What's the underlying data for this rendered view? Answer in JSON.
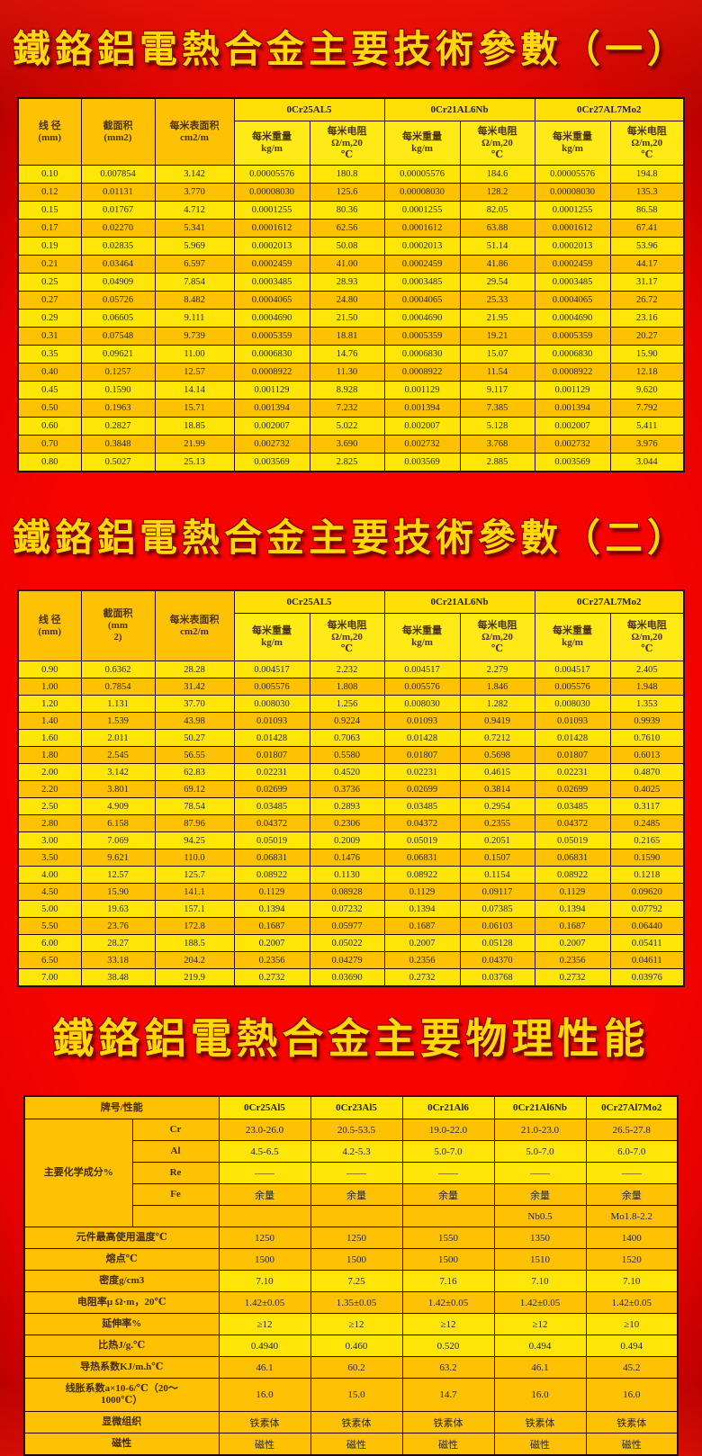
{
  "titles": {
    "t1": "鐵鉻鋁電熱合金主要技術參數（一）",
    "t2": "鐵鉻鋁電熱合金主要技術參數（二）",
    "t3": "鐵鉻鋁電熱合金主要物理性能"
  },
  "colors": {
    "background_red": "#ef0300",
    "vignette_maroon": "#5c0000",
    "cell_yellow": "#ffe608",
    "cell_orange": "#ffc103",
    "title_gold": "#ffd908"
  },
  "table1": {
    "col_headers": [
      "线 径\n(mm)",
      "截面积\n(mm2)",
      "每米表面积\ncm2/m"
    ],
    "alloys": [
      "0Cr25AL5",
      "0Cr21AL6Nb",
      "0Cr27AL7Mo2"
    ],
    "sub_headers": {
      "weight": "每米重量\nkg/m",
      "resistance": "每米电阻\nΩ/m,20\n℃"
    },
    "rows": [
      [
        "0.10",
        "0.007854",
        "3.142",
        "0.00005576",
        "180.8",
        "0.00005576",
        "184.6",
        "0.00005576",
        "194.8"
      ],
      [
        "0.12",
        "0.01131",
        "3.770",
        "0.00008030",
        "125.6",
        "0.00008030",
        "128.2",
        "0.00008030",
        "135.3"
      ],
      [
        "0.15",
        "0.01767",
        "4.712",
        "0.0001255",
        "80.36",
        "0.0001255",
        "82.05",
        "0.0001255",
        "86.58"
      ],
      [
        "0.17",
        "0.02270",
        "5.341",
        "0.0001612",
        "62.56",
        "0.0001612",
        "63.88",
        "0.0001612",
        "67.41"
      ],
      [
        "0.19",
        "0.02835",
        "5.969",
        "0.0002013",
        "50.08",
        "0.0002013",
        "51.14",
        "0.0002013",
        "53.96"
      ],
      [
        "0.21",
        "0.03464",
        "6.597",
        "0.0002459",
        "41.00",
        "0.0002459",
        "41.86",
        "0.0002459",
        "44.17"
      ],
      [
        "0.25",
        "0.04909",
        "7.854",
        "0.0003485",
        "28.93",
        "0.0003485",
        "29.54",
        "0.0003485",
        "31.17"
      ],
      [
        "0.27",
        "0.05726",
        "8.482",
        "0.0004065",
        "24.80",
        "0.0004065",
        "25.33",
        "0.0004065",
        "26.72"
      ],
      [
        "0.29",
        "0.06605",
        "9.111",
        "0.0004690",
        "21.50",
        "0.0004690",
        "21.95",
        "0.0004690",
        "23.16"
      ],
      [
        "0.31",
        "0.07548",
        "9.739",
        "0.0005359",
        "18.81",
        "0.0005359",
        "19.21",
        "0.0005359",
        "20.27"
      ],
      [
        "0.35",
        "0.09621",
        "11.00",
        "0.0006830",
        "14.76",
        "0.0006830",
        "15.07",
        "0.0006830",
        "15.90"
      ],
      [
        "0.40",
        "0.1257",
        "12.57",
        "0.0008922",
        "11.30",
        "0.0008922",
        "11.54",
        "0.0008922",
        "12.18"
      ],
      [
        "0.45",
        "0.1590",
        "14.14",
        "0.001129",
        "8.928",
        "0.001129",
        "9.117",
        "0.001129",
        "9.620"
      ],
      [
        "0.50",
        "0.1963",
        "15.71",
        "0.001394",
        "7.232",
        "0.001394",
        "7.385",
        "0.001394",
        "7.792"
      ],
      [
        "0.60",
        "0.2827",
        "18.85",
        "0.002007",
        "5.022",
        "0.002007",
        "5.128",
        "0.002007",
        "5.411"
      ],
      [
        "0.70",
        "0.3848",
        "21.99",
        "0.002732",
        "3.690",
        "0.002732",
        "3.768",
        "0.002732",
        "3.976"
      ],
      [
        "0.80",
        "0.5027",
        "25.13",
        "0.003569",
        "2.825",
        "0.003569",
        "2.885",
        "0.003569",
        "3.044"
      ]
    ]
  },
  "table2": {
    "col_headers": [
      "线 径\n(mm)",
      "截面积\n(mm\n2)",
      "每米表面积\ncm2/m"
    ],
    "alloys": [
      "0Cr25AL5",
      "0Cr21AL6Nb",
      "0Cr27AL7Mo2"
    ],
    "sub_headers": {
      "weight": "每米重量\nkg/m",
      "resistance": "每米电阻\nΩ/m,20\n℃"
    },
    "rows": [
      [
        "0.90",
        "0.6362",
        "28.28",
        "0.004517",
        "2.232",
        "0.004517",
        "2.279",
        "0.004517",
        "2.405"
      ],
      [
        "1.00",
        "0.7854",
        "31.42",
        "0.005576",
        "1.808",
        "0.005576",
        "1.846",
        "0.005576",
        "1.948"
      ],
      [
        "1.20",
        "1.131",
        "37.70",
        "0.008030",
        "1.256",
        "0.008030",
        "1.282",
        "0.008030",
        "1.353"
      ],
      [
        "1.40",
        "1.539",
        "43.98",
        "0.01093",
        "0.9224",
        "0.01093",
        "0.9419",
        "0.01093",
        "0.9939"
      ],
      [
        "1.60",
        "2.011",
        "50.27",
        "0.01428",
        "0.7063",
        "0.01428",
        "0.7212",
        "0.01428",
        "0.7610"
      ],
      [
        "1.80",
        "2.545",
        "56.55",
        "0.01807",
        "0.5580",
        "0.01807",
        "0.5698",
        "0.01807",
        "0.6013"
      ],
      [
        "2.00",
        "3.142",
        "62.83",
        "0.02231",
        "0.4520",
        "0.02231",
        "0.4615",
        "0.02231",
        "0.4870"
      ],
      [
        "2.20",
        "3.801",
        "69.12",
        "0.02699",
        "0.3736",
        "0.02699",
        "0.3814",
        "0.02699",
        "0.4025"
      ],
      [
        "2.50",
        "4.909",
        "78.54",
        "0.03485",
        "0.2893",
        "0.03485",
        "0.2954",
        "0.03485",
        "0.3117"
      ],
      [
        "2.80",
        "6.158",
        "87.96",
        "0.04372",
        "0.2306",
        "0.04372",
        "0.2355",
        "0.04372",
        "0.2485"
      ],
      [
        "3.00",
        "7.069",
        "94.25",
        "0.05019",
        "0.2009",
        "0.05019",
        "0.2051",
        "0.05019",
        "0.2165"
      ],
      [
        "3.50",
        "9.621",
        "110.0",
        "0.06831",
        "0.1476",
        "0.06831",
        "0.1507",
        "0.06831",
        "0.1590"
      ],
      [
        "4.00",
        "12.57",
        "125.7",
        "0.08922",
        "0.1130",
        "0.08922",
        "0.1154",
        "0.08922",
        "0.1218"
      ],
      [
        "4.50",
        "15.90",
        "141.1",
        "0.1129",
        "0.08928",
        "0.1129",
        "0.09117",
        "0.1129",
        "0.09620"
      ],
      [
        "5.00",
        "19.63",
        "157.1",
        "0.1394",
        "0.07232",
        "0.1394",
        "0.07385",
        "0.1394",
        "0.07792"
      ],
      [
        "5.50",
        "23.76",
        "172.8",
        "0.1687",
        "0.05977",
        "0.1687",
        "0.06103",
        "0.1687",
        "0.06440"
      ],
      [
        "6.00",
        "28.27",
        "188.5",
        "0.2007",
        "0.05022",
        "0.2007",
        "0.05128",
        "0.2007",
        "0.05411"
      ],
      [
        "6.50",
        "33.18",
        "204.2",
        "0.2356",
        "0.04279",
        "0.2356",
        "0.04370",
        "0.2356",
        "0.04611"
      ],
      [
        "7.00",
        "38.48",
        "219.9",
        "0.2732",
        "0.03690",
        "0.2732",
        "0.03768",
        "0.2732",
        "0.03976"
      ]
    ]
  },
  "table3": {
    "corner_header": "牌号/性能",
    "alloys": [
      "0Cr25Al5",
      "0Cr23Al5",
      "0Cr21Al6",
      "0Cr21Al6Nb",
      "0Cr27Al7Mo2"
    ],
    "chem_label": "主要化学成分%",
    "chem_rows": [
      {
        "element": "Cr",
        "values": [
          "23.0-26.0",
          "20.5-53.5",
          "19.0-22.0",
          "21.0-23.0",
          "26.5-27.8"
        ]
      },
      {
        "element": "Al",
        "values": [
          "4.5-6.5",
          "4.2-5.3",
          "5.0-7.0",
          "5.0-7.0",
          "6.0-7.0"
        ]
      },
      {
        "element": "Re",
        "values": [
          "——",
          "——",
          "——",
          "——",
          "——"
        ]
      },
      {
        "element": "Fe",
        "values": [
          "余量",
          "余量",
          "余量",
          "余量",
          "余量"
        ]
      },
      {
        "element": "",
        "values": [
          "",
          "",
          "",
          "Nb0.5",
          "Mo1.8-2.2"
        ]
      }
    ],
    "prop_rows": [
      {
        "label": "元件最高使用温度℃",
        "values": [
          "1250",
          "1250",
          "1550",
          "1350",
          "1400"
        ]
      },
      {
        "label": "熔点℃",
        "values": [
          "1500",
          "1500",
          "1500",
          "1510",
          "1520"
        ]
      },
      {
        "label": "密度g/cm3",
        "values": [
          "7.10",
          "7.25",
          "7.16",
          "7.10",
          "7.10"
        ]
      },
      {
        "label": "电阻率μ Ω·m，20℃",
        "values": [
          "1.42±0.05",
          "1.35±0.05",
          "1.42±0.05",
          "1.42±0.05",
          "1.42±0.05"
        ]
      },
      {
        "label": "延伸率%",
        "values": [
          "≥12",
          "≥12",
          "≥12",
          "≥12",
          "≥10"
        ]
      },
      {
        "label": "比热J/g.℃",
        "values": [
          "0.4940",
          "0.460",
          "0.520",
          "0.494",
          "0.494"
        ]
      },
      {
        "label": "导热系数KJ/m.h℃",
        "values": [
          "46.1",
          "60.2",
          "63.2",
          "46.1",
          "45.2"
        ]
      },
      {
        "label": "线胀系数a×10-6/℃（20～\n1000℃）",
        "values": [
          "16.0",
          "15.0",
          "14.7",
          "16.0",
          "16.0"
        ]
      },
      {
        "label": "显微组织",
        "values": [
          "铁素体",
          "铁素体",
          "铁素体",
          "铁素体",
          "铁素体"
        ]
      },
      {
        "label": "磁性",
        "values": [
          "磁性",
          "磁性",
          "磁性",
          "磁性",
          "磁性"
        ]
      }
    ]
  }
}
